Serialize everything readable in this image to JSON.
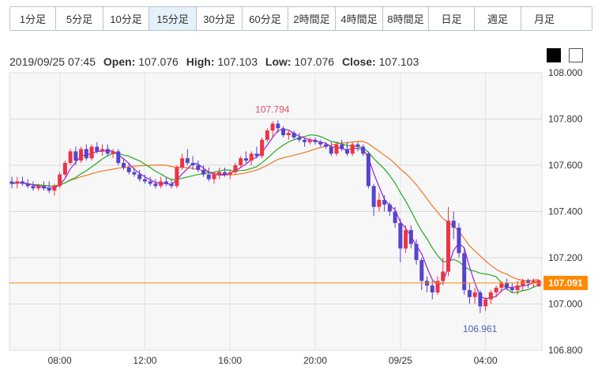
{
  "tabs": [
    {
      "label": "1分足",
      "active": false
    },
    {
      "label": "5分足",
      "active": false
    },
    {
      "label": "10分足",
      "active": false
    },
    {
      "label": "15分足",
      "active": true
    },
    {
      "label": "30分足",
      "active": false
    },
    {
      "label": "60分足",
      "active": false
    },
    {
      "label": "2時間足",
      "active": false
    },
    {
      "label": "4時間足",
      "active": false
    },
    {
      "label": "8時間足",
      "active": false
    },
    {
      "label": "日足",
      "active": false
    },
    {
      "label": "週足",
      "active": false
    },
    {
      "label": "月足",
      "active": false
    }
  ],
  "info": {
    "datetime": "2019/09/25 07:45",
    "open_label": "Open:",
    "open": "107.076",
    "high_label": "High:",
    "high": "107.103",
    "low_label": "Low:",
    "low": "107.076",
    "close_label": "Close:",
    "close": "107.103"
  },
  "theme_swatches": [
    {
      "name": "dark-theme-swatch",
      "color": "#000000"
    },
    {
      "name": "light-theme-swatch",
      "color": "#ffffff"
    }
  ],
  "colors": {
    "up": "#ee3344",
    "down": "#5544cc",
    "ma_short": "#9922cc",
    "ma_mid": "#22aa22",
    "ma_long": "#ee7722",
    "price_line": "#ff8800"
  },
  "chart_data": {
    "type": "candlestick",
    "ylim": [
      106.8,
      108.0
    ],
    "y_ticks": [
      "108.000",
      "107.800",
      "107.600",
      "107.400",
      "107.200",
      "107.000",
      "106.800"
    ],
    "x_ticks": [
      {
        "label": "08:00",
        "index": 9
      },
      {
        "label": "12:00",
        "index": 25
      },
      {
        "label": "16:00",
        "index": 41
      },
      {
        "label": "20:00",
        "index": 57
      },
      {
        "label": "09/25",
        "index": 73
      },
      {
        "label": "04:00",
        "index": 89
      }
    ],
    "last_price": "107.091",
    "annotations": [
      {
        "label": "107.794",
        "index": 50,
        "value": 107.794,
        "position": "above"
      },
      {
        "label": "106.961",
        "index": 89,
        "value": 106.961,
        "position": "below"
      }
    ],
    "candles": [
      [
        107.53,
        107.55,
        107.5,
        107.52
      ],
      [
        107.52,
        107.55,
        107.5,
        107.53
      ],
      [
        107.53,
        107.55,
        107.51,
        107.52
      ],
      [
        107.52,
        107.54,
        107.5,
        107.51
      ],
      [
        107.51,
        107.53,
        107.49,
        107.5
      ],
      [
        107.5,
        107.52,
        107.49,
        107.51
      ],
      [
        107.51,
        107.53,
        107.49,
        107.5
      ],
      [
        107.5,
        107.53,
        107.48,
        107.49
      ],
      [
        107.49,
        107.52,
        107.47,
        107.51
      ],
      [
        107.51,
        107.57,
        107.5,
        107.56
      ],
      [
        107.56,
        107.62,
        107.55,
        107.61
      ],
      [
        107.61,
        107.67,
        107.6,
        107.66
      ],
      [
        107.66,
        107.68,
        107.6,
        107.62
      ],
      [
        107.62,
        107.68,
        107.61,
        107.67
      ],
      [
        107.67,
        107.69,
        107.62,
        107.63
      ],
      [
        107.63,
        107.69,
        107.62,
        107.68
      ],
      [
        107.68,
        107.7,
        107.65,
        107.66
      ],
      [
        107.66,
        107.69,
        107.64,
        107.67
      ],
      [
        107.67,
        107.69,
        107.64,
        107.65
      ],
      [
        107.65,
        107.67,
        107.63,
        107.66
      ],
      [
        107.66,
        107.67,
        107.6,
        107.61
      ],
      [
        107.61,
        107.63,
        107.58,
        107.59
      ],
      [
        107.59,
        107.61,
        107.56,
        107.57
      ],
      [
        107.57,
        107.59,
        107.55,
        107.56
      ],
      [
        107.56,
        107.58,
        107.53,
        107.54
      ],
      [
        107.54,
        107.56,
        107.52,
        107.53
      ],
      [
        107.53,
        107.55,
        107.51,
        107.52
      ],
      [
        107.52,
        107.54,
        107.5,
        107.51
      ],
      [
        107.51,
        107.55,
        107.5,
        107.53
      ],
      [
        107.53,
        107.55,
        107.51,
        107.52
      ],
      [
        107.52,
        107.54,
        107.5,
        107.51
      ],
      [
        107.51,
        107.6,
        107.5,
        107.59
      ],
      [
        107.59,
        107.65,
        107.58,
        107.63
      ],
      [
        107.63,
        107.67,
        107.6,
        107.61
      ],
      [
        107.61,
        107.64,
        107.58,
        107.6
      ],
      [
        107.6,
        107.62,
        107.57,
        107.58
      ],
      [
        107.58,
        107.6,
        107.55,
        107.56
      ],
      [
        107.56,
        107.59,
        107.53,
        107.54
      ],
      [
        107.54,
        107.57,
        107.52,
        107.56
      ],
      [
        107.56,
        107.59,
        107.54,
        107.57
      ],
      [
        107.57,
        107.59,
        107.55,
        107.56
      ],
      [
        107.56,
        107.58,
        107.54,
        107.57
      ],
      [
        107.57,
        107.61,
        107.56,
        107.6
      ],
      [
        107.6,
        107.64,
        107.59,
        107.63
      ],
      [
        107.63,
        107.66,
        107.61,
        107.62
      ],
      [
        107.62,
        107.66,
        107.6,
        107.65
      ],
      [
        107.65,
        107.68,
        107.63,
        107.64
      ],
      [
        107.64,
        107.72,
        107.63,
        107.71
      ],
      [
        107.71,
        107.76,
        107.7,
        107.75
      ],
      [
        107.75,
        107.79,
        107.72,
        107.78
      ],
      [
        107.78,
        107.794,
        107.74,
        107.76
      ],
      [
        107.76,
        107.77,
        107.72,
        107.73
      ],
      [
        107.73,
        107.75,
        107.71,
        107.74
      ],
      [
        107.74,
        107.75,
        107.71,
        107.72
      ],
      [
        107.72,
        107.74,
        107.7,
        107.71
      ],
      [
        107.71,
        107.72,
        107.68,
        107.7
      ],
      [
        107.7,
        107.72,
        107.69,
        107.71
      ],
      [
        107.71,
        107.72,
        107.69,
        107.7
      ],
      [
        107.7,
        107.71,
        107.68,
        107.69
      ],
      [
        107.69,
        107.7,
        107.67,
        107.68
      ],
      [
        107.68,
        107.7,
        107.64,
        107.65
      ],
      [
        107.65,
        107.7,
        107.64,
        107.69
      ],
      [
        107.69,
        107.71,
        107.66,
        107.67
      ],
      [
        107.67,
        107.7,
        107.64,
        107.65
      ],
      [
        107.65,
        107.7,
        107.64,
        107.69
      ],
      [
        107.69,
        107.7,
        107.66,
        107.68
      ],
      [
        107.68,
        107.69,
        107.64,
        107.65
      ],
      [
        107.65,
        107.66,
        107.5,
        107.51
      ],
      [
        107.51,
        107.52,
        107.38,
        107.42
      ],
      [
        107.42,
        107.48,
        107.4,
        107.45
      ],
      [
        107.45,
        107.47,
        107.4,
        107.43
      ],
      [
        107.43,
        107.44,
        107.38,
        107.4
      ],
      [
        107.4,
        107.42,
        107.33,
        107.35
      ],
      [
        107.35,
        107.37,
        107.18,
        107.24
      ],
      [
        107.24,
        107.34,
        107.22,
        107.32
      ],
      [
        107.32,
        107.34,
        107.24,
        107.26
      ],
      [
        107.26,
        107.28,
        107.17,
        107.19
      ],
      [
        107.19,
        107.2,
        107.06,
        107.1
      ],
      [
        107.1,
        107.12,
        107.05,
        107.08
      ],
      [
        107.08,
        107.1,
        107.02,
        107.05
      ],
      [
        107.05,
        107.12,
        107.04,
        107.1
      ],
      [
        107.1,
        107.2,
        107.08,
        107.14
      ],
      [
        107.14,
        107.42,
        107.12,
        107.36
      ],
      [
        107.36,
        107.4,
        107.28,
        107.33
      ],
      [
        107.33,
        107.35,
        107.2,
        107.22
      ],
      [
        107.22,
        107.24,
        107.04,
        107.06
      ],
      [
        107.06,
        107.09,
        107.0,
        107.03
      ],
      [
        107.03,
        107.07,
        107.0,
        107.05
      ],
      [
        107.05,
        107.06,
        106.961,
        106.99
      ],
      [
        106.99,
        107.03,
        106.97,
        107.02
      ],
      [
        107.02,
        107.06,
        107.0,
        107.05
      ],
      [
        107.05,
        107.08,
        107.03,
        107.07
      ],
      [
        107.07,
        107.1,
        107.05,
        107.09
      ],
      [
        107.09,
        107.11,
        107.06,
        107.07
      ],
      [
        107.07,
        107.09,
        107.05,
        107.06
      ],
      [
        107.06,
        107.1,
        107.04,
        107.08
      ],
      [
        107.08,
        107.11,
        107.06,
        107.1
      ],
      [
        107.1,
        107.11,
        107.07,
        107.09
      ],
      [
        107.09,
        107.11,
        107.07,
        107.1
      ],
      [
        107.076,
        107.103,
        107.076,
        107.103
      ]
    ]
  }
}
